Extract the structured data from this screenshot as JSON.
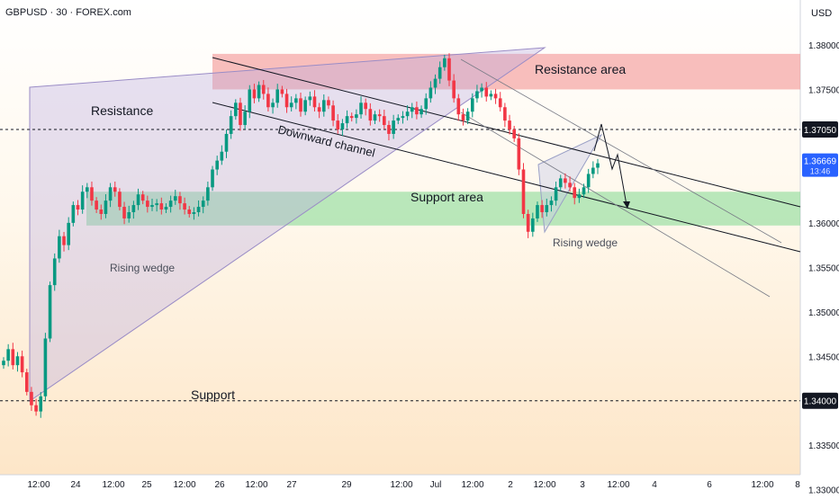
{
  "header": {
    "ticker": "GBPUSD · 30 · FOREX.com",
    "currency": "USD"
  },
  "colors": {
    "candle_up": "#089981",
    "candle_down": "#f23645",
    "resistance_zone": "#f28b8b",
    "support_zone": "#7fd88f",
    "wedge_fill": "#b8a9e0",
    "price_label_bg": "#2962ff"
  },
  "chart_data": {
    "type": "candlestick",
    "y_ticks": [
      "1.38000",
      "1.37500",
      "1.37050",
      "1.36669",
      "1.36000",
      "1.35500",
      "1.35000",
      "1.34500",
      "1.34000",
      "1.33500",
      "1.33000"
    ],
    "ylim": [
      1.3285,
      1.3822
    ],
    "x_ticks": [
      "12:00",
      "24",
      "12:00",
      "25",
      "12:00",
      "26",
      "12:00",
      "27",
      "29",
      "12:00",
      "Jul",
      "12:00",
      "2",
      "12:00",
      "3",
      "12:00",
      "4",
      "6",
      "12:00",
      "8"
    ],
    "xlim": [
      0,
      180
    ],
    "horizontal_levels": [
      {
        "value": 1.3705,
        "label": "1.37050"
      },
      {
        "value": 1.34,
        "label": "1.34000"
      }
    ],
    "current_price": {
      "value": 1.36669,
      "label": "1.36669",
      "countdown": "13:46"
    },
    "zones": [
      {
        "name": "Resistance area",
        "from": 1.375,
        "to": 1.379
      },
      {
        "name": "Support area",
        "from": 1.3597,
        "to": 1.3635
      }
    ],
    "annotations": [
      "Resistance",
      "Support",
      "Rising wedge",
      "Downward channel",
      "Resistance area",
      "Support area",
      "Rising wedge"
    ],
    "candles": {
      "start_index": 0,
      "closes": [
        1.3445,
        1.3458,
        1.344,
        1.345,
        1.3432,
        1.341,
        1.3395,
        1.3388,
        1.3405,
        1.347,
        1.353,
        1.356,
        1.3585,
        1.3575,
        1.36,
        1.362,
        1.3615,
        1.3635,
        1.364,
        1.3625,
        1.3615,
        1.361,
        1.3625,
        1.364,
        1.3635,
        1.3618,
        1.3605,
        1.3612,
        1.362,
        1.3632,
        1.3625,
        1.3618,
        1.362,
        1.3622,
        1.3615,
        1.3618,
        1.3625,
        1.363,
        1.3622,
        1.3615,
        1.361,
        1.3612,
        1.3618,
        1.3625,
        1.364,
        1.366,
        1.367,
        1.368,
        1.37,
        1.372,
        1.3735,
        1.371,
        1.3725,
        1.375,
        1.374,
        1.3755,
        1.3745,
        1.373,
        1.3735,
        1.375,
        1.3745,
        1.373,
        1.3735,
        1.374,
        1.3725,
        1.3738,
        1.3742,
        1.373,
        1.3725,
        1.3738,
        1.3732,
        1.3715,
        1.3705,
        1.3712,
        1.372,
        1.3718,
        1.3722,
        1.3735,
        1.3728,
        1.3715,
        1.3722,
        1.372,
        1.371,
        1.37,
        1.3715,
        1.3718,
        1.372,
        1.3725,
        1.373,
        1.3722,
        1.3728,
        1.374,
        1.3752,
        1.3762,
        1.3775,
        1.3785,
        1.376,
        1.374,
        1.3722,
        1.3715,
        1.3725,
        1.374,
        1.3748,
        1.3752,
        1.3742,
        1.3745,
        1.374,
        1.373,
        1.3715,
        1.3705,
        1.3695,
        1.366,
        1.361,
        1.359,
        1.3605,
        1.362,
        1.3612,
        1.362,
        1.3625,
        1.364,
        1.365,
        1.3645,
        1.364,
        1.3628,
        1.3632,
        1.364,
        1.3655,
        1.3662,
        1.3667
      ]
    }
  }
}
